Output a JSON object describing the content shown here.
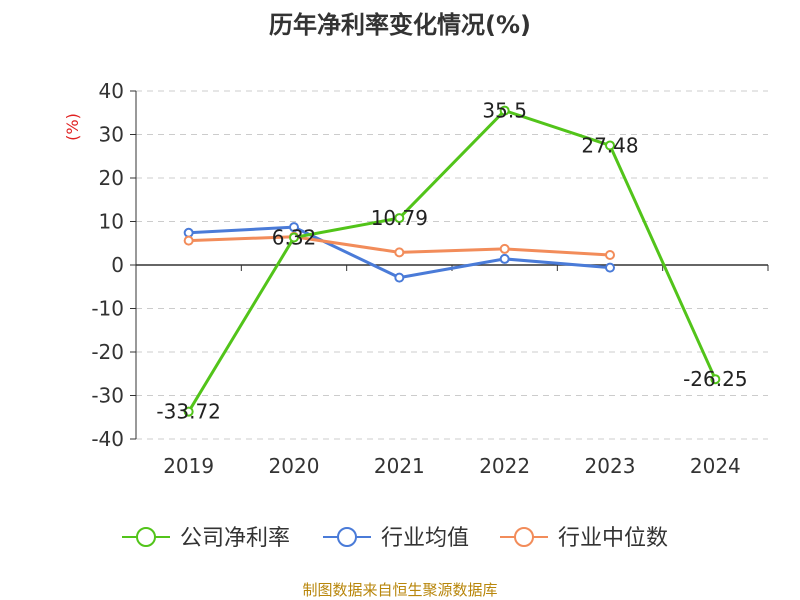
{
  "chart_data": {
    "type": "line",
    "title": "历年净利率变化情况(%)",
    "ylabel": "(%)",
    "xlabel": "",
    "categories": [
      "2019",
      "2020",
      "2021",
      "2022",
      "2023",
      "2024"
    ],
    "ylim": [
      -40,
      40
    ],
    "yticks": [
      40,
      30,
      20,
      10,
      0,
      -10,
      -20,
      -30,
      -40
    ],
    "grid": true,
    "legend_position": "bottom",
    "series": [
      {
        "name": "公司净利率",
        "color": "#52c41a",
        "values": [
          -33.72,
          6.32,
          10.79,
          35.5,
          27.48,
          -26.25
        ],
        "labels": [
          "-33.72",
          "6.32",
          "10.79",
          "35.5",
          "27.48",
          "-26.25"
        ]
      },
      {
        "name": "行业均值",
        "color": "#4a7bd8",
        "values": [
          7.4,
          8.7,
          -2.9,
          1.4,
          -0.6,
          null
        ]
      },
      {
        "name": "行业中位数",
        "color": "#f28c5a",
        "values": [
          5.6,
          6.5,
          2.9,
          3.7,
          2.3,
          null
        ]
      }
    ]
  },
  "source": "制图数据来自恒生聚源数据库"
}
